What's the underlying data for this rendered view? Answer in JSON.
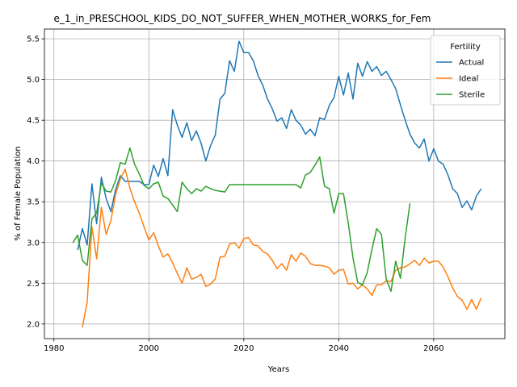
{
  "chart_data": {
    "type": "line",
    "title": "e_1_in_PRESCHOOL_KIDS_DO_NOT_SUFFER_WHEN_MOTHER_WORKS_for_Fem",
    "xlabel": "Years",
    "ylabel": "% of Female Population",
    "xlim": [
      1978,
      2075
    ],
    "ylim": [
      1.82,
      5.62
    ],
    "xticks": [
      1980,
      2000,
      2020,
      2040,
      2060
    ],
    "yticks": [
      2.0,
      2.5,
      3.0,
      3.5,
      4.0,
      4.5,
      5.0,
      5.5
    ],
    "ytick_labels": [
      "2.0",
      "2.5",
      "3.0",
      "3.5",
      "4.0",
      "4.5",
      "5.0",
      "5.5"
    ],
    "grid": true,
    "legend": {
      "title": "Fertility",
      "position": "top-right"
    },
    "series": [
      {
        "name": "Actual",
        "color": "#1f77b4",
        "x": [
          1985,
          1986,
          1987,
          1988,
          1989,
          1990,
          1991,
          1992,
          1993,
          1994,
          1995,
          1996,
          1997,
          1998,
          1999,
          2000,
          2001,
          2002,
          2003,
          2004,
          2005,
          2006,
          2007,
          2008,
          2009,
          2010,
          2011,
          2012,
          2013,
          2014,
          2015,
          2016,
          2017,
          2018,
          2019,
          2020,
          2021,
          2022,
          2023,
          2024,
          2025,
          2026,
          2027,
          2028,
          2029,
          2030,
          2031,
          2032,
          2033,
          2034,
          2035,
          2036,
          2037,
          2038,
          2039,
          2040,
          2041,
          2042,
          2043,
          2044,
          2045,
          2046,
          2047,
          2048,
          2049,
          2050,
          2051,
          2052,
          2053,
          2054,
          2055,
          2056,
          2057,
          2058,
          2059,
          2060,
          2061,
          2062,
          2063,
          2064,
          2065,
          2066,
          2067,
          2068,
          2069,
          2070
        ],
        "y": [
          2.91,
          3.17,
          2.97,
          3.72,
          3.23,
          3.8,
          3.54,
          3.38,
          3.65,
          3.82,
          3.75,
          3.75,
          3.75,
          3.75,
          3.71,
          3.71,
          3.95,
          3.81,
          4.03,
          3.82,
          4.63,
          4.44,
          4.29,
          4.47,
          4.25,
          4.37,
          4.22,
          4.0,
          4.19,
          4.32,
          4.76,
          4.83,
          5.23,
          5.1,
          5.47,
          5.33,
          5.33,
          5.23,
          5.05,
          4.93,
          4.76,
          4.64,
          4.49,
          4.53,
          4.4,
          4.63,
          4.5,
          4.44,
          4.33,
          4.39,
          4.31,
          4.53,
          4.51,
          4.68,
          4.78,
          5.04,
          4.81,
          5.08,
          4.76,
          5.2,
          5.04,
          5.22,
          5.1,
          5.16,
          5.05,
          5.1,
          5.0,
          4.89,
          4.69,
          4.5,
          4.33,
          4.22,
          4.16,
          4.27,
          4.0,
          4.15,
          4.0,
          3.96,
          3.83,
          3.66,
          3.6,
          3.43,
          3.51,
          3.4,
          3.57,
          3.66
        ]
      },
      {
        "name": "Ideal",
        "color": "#ff7f0e",
        "x": [
          1986,
          1987,
          1988,
          1989,
          1990,
          1991,
          1992,
          1993,
          1994,
          1995,
          1996,
          1997,
          1998,
          1999,
          2000,
          2001,
          2002,
          2003,
          2004,
          2005,
          2006,
          2007,
          2008,
          2009,
          2010,
          2011,
          2012,
          2013,
          2014,
          2015,
          2016,
          2017,
          2018,
          2019,
          2020,
          2021,
          2022,
          2023,
          2024,
          2025,
          2026,
          2027,
          2028,
          2029,
          2030,
          2031,
          2032,
          2033,
          2034,
          2035,
          2036,
          2037,
          2038,
          2039,
          2040,
          2041,
          2042,
          2043,
          2044,
          2045,
          2046,
          2047,
          2048,
          2049,
          2050,
          2051,
          2052,
          2053,
          2054,
          2055,
          2056,
          2057,
          2058,
          2059,
          2060,
          2061,
          2062,
          2063,
          2064,
          2065,
          2066,
          2067,
          2068,
          2069,
          2070
        ],
        "y": [
          1.96,
          2.27,
          3.19,
          2.8,
          3.43,
          3.1,
          3.27,
          3.59,
          3.78,
          3.9,
          3.67,
          3.5,
          3.36,
          3.19,
          3.03,
          3.12,
          2.96,
          2.82,
          2.86,
          2.75,
          2.62,
          2.5,
          2.69,
          2.55,
          2.57,
          2.61,
          2.46,
          2.49,
          2.55,
          2.82,
          2.83,
          2.98,
          3.0,
          2.93,
          3.05,
          3.06,
          2.97,
          2.96,
          2.89,
          2.86,
          2.78,
          2.68,
          2.74,
          2.66,
          2.85,
          2.77,
          2.87,
          2.83,
          2.74,
          2.72,
          2.72,
          2.71,
          2.69,
          2.61,
          2.66,
          2.67,
          2.49,
          2.5,
          2.43,
          2.48,
          2.43,
          2.35,
          2.48,
          2.48,
          2.53,
          2.52,
          2.66,
          2.69,
          2.7,
          2.74,
          2.78,
          2.72,
          2.81,
          2.75,
          2.77,
          2.77,
          2.7,
          2.58,
          2.44,
          2.34,
          2.29,
          2.18,
          2.3,
          2.18,
          2.32
        ]
      },
      {
        "name": "Sterile",
        "color": "#2ca02c",
        "x": [
          1984,
          1985,
          1986,
          1987,
          1988,
          1989,
          1990,
          1991,
          1992,
          1993,
          1994,
          1995,
          1996,
          1997,
          1998,
          1999,
          2000,
          2001,
          2002,
          2003,
          2004,
          2005,
          2006,
          2007,
          2008,
          2009,
          2010,
          2011,
          2012,
          2013,
          2014,
          2015,
          2016,
          2017,
          2018,
          2019,
          2020,
          2021,
          2022,
          2023,
          2024,
          2025,
          2026,
          2027,
          2028,
          2029,
          2030,
          2031,
          2032,
          2033,
          2034,
          2035,
          2036,
          2037,
          2038,
          2039,
          2040,
          2041,
          2042,
          2043,
          2044,
          2045,
          2046,
          2047,
          2048,
          2049,
          2050,
          2051,
          2052,
          2053,
          2054,
          2055
        ],
        "y": [
          3.0,
          3.09,
          2.78,
          2.72,
          3.29,
          3.36,
          3.73,
          3.63,
          3.62,
          3.76,
          3.98,
          3.96,
          4.16,
          3.96,
          3.84,
          3.7,
          3.66,
          3.72,
          3.74,
          3.57,
          3.54,
          3.46,
          3.38,
          3.74,
          3.66,
          3.6,
          3.66,
          3.63,
          3.69,
          3.66,
          3.64,
          3.63,
          3.62,
          3.71,
          3.71,
          3.71,
          3.71,
          3.71,
          3.71,
          3.71,
          3.71,
          3.71,
          3.71,
          3.71,
          3.71,
          3.71,
          3.71,
          3.71,
          3.67,
          3.83,
          3.86,
          3.95,
          4.05,
          3.69,
          3.66,
          3.36,
          3.6,
          3.6,
          3.24,
          2.81,
          2.51,
          2.48,
          2.63,
          2.92,
          3.17,
          3.1,
          2.55,
          2.4,
          2.77,
          2.56,
          3.06,
          3.48
        ]
      }
    ]
  }
}
